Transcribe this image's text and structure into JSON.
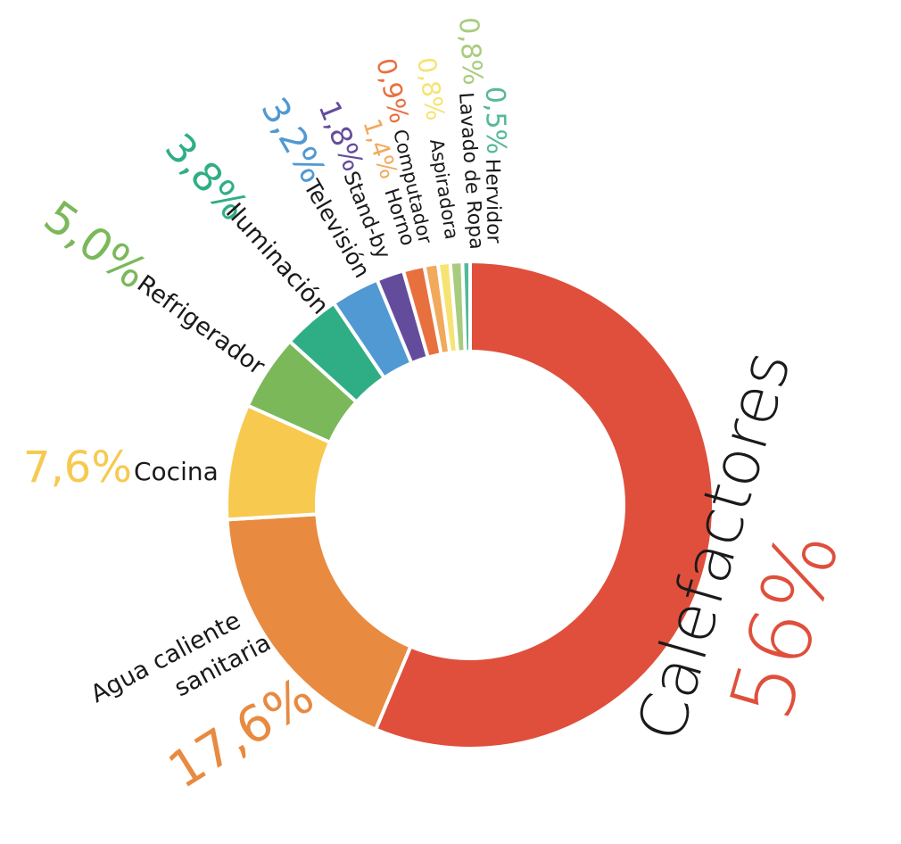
{
  "chart_data": {
    "type": "pie",
    "categories": [
      "Calefactores",
      "Agua caliente sanitaria",
      "Cocina",
      "Refrigerador",
      "Iluminación",
      "Televisión",
      "Stand-by",
      "Horno",
      "Computador",
      "Aspiradora",
      "Lavado de Ropa",
      "Hervidor"
    ],
    "values": [
      56,
      17.6,
      7.6,
      5.0,
      3.8,
      3.2,
      1.8,
      1.4,
      0.9,
      0.8,
      0.8,
      0.5
    ],
    "value_labels": [
      "56%",
      "17,6%",
      "7,6%",
      "5,0%",
      "3,8%",
      "3,2%",
      "1,8%",
      "1,4%",
      "0,9%",
      "0,8%",
      "0,8%",
      "0,5%"
    ],
    "colors": [
      "#df4f3c",
      "#e88a40",
      "#f7c94f",
      "#7bb85a",
      "#2fae86",
      "#5099d3",
      "#644c9c",
      "#e8703f",
      "#f1a95b",
      "#f6e372",
      "#a8cc7e",
      "#56b89a"
    ],
    "label_colors": [
      "#df4f3c",
      "#e88a40",
      "#f7c94f",
      "#7bb85a",
      "#2fae86",
      "#5099d3",
      "#644c9c",
      "#f1a95b",
      "#e8703f",
      "#f6e372",
      "#a8cc7e",
      "#56b89a"
    ],
    "title": "",
    "legend": "none",
    "style": "donut"
  }
}
